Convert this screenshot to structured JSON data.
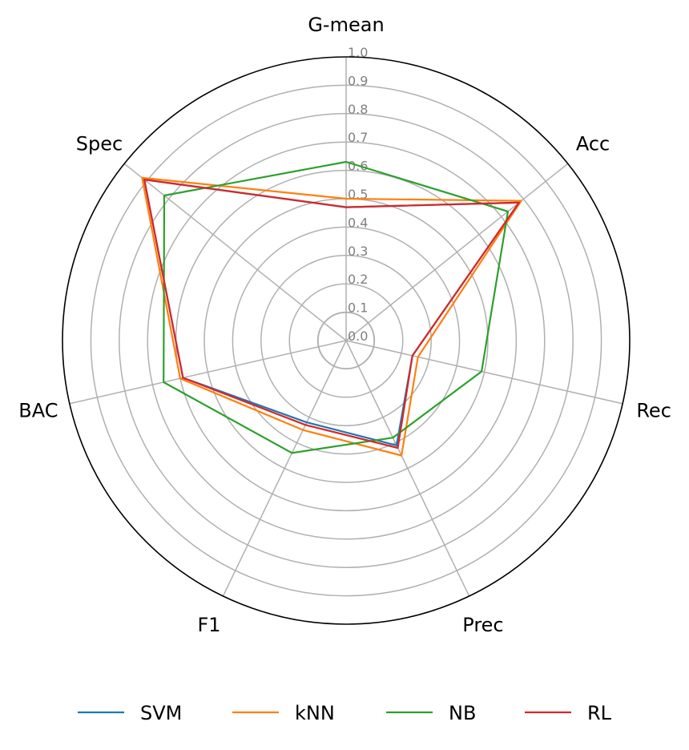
{
  "chart_data": {
    "type": "radar",
    "axes": [
      "G-mean",
      "Acc",
      "Rec",
      "Prec",
      "F1",
      "BAC",
      "Spec"
    ],
    "rlim": [
      0,
      1.0
    ],
    "ticks": [
      "0.0",
      "0.1",
      "0.2",
      "0.3",
      "0.4",
      "0.5",
      "0.6",
      "0.7",
      "0.8",
      "0.9",
      "1.0"
    ],
    "tick_values": [
      0.0,
      0.1,
      0.2,
      0.3,
      0.4,
      0.5,
      0.6,
      0.7,
      0.8,
      0.9,
      1.0
    ],
    "grid": true,
    "legend_position": "bottom",
    "series": [
      {
        "name": "SVM",
        "color": "#1f77b4",
        "values": [
          0.47,
          0.78,
          0.24,
          0.41,
          0.32,
          0.59,
          0.91
        ]
      },
      {
        "name": "kNN",
        "color": "#ff7f0e",
        "values": [
          0.5,
          0.79,
          0.26,
          0.45,
          0.35,
          0.6,
          0.92
        ]
      },
      {
        "name": "NB",
        "color": "#2ca02c",
        "values": [
          0.63,
          0.73,
          0.49,
          0.38,
          0.44,
          0.66,
          0.82
        ]
      },
      {
        "name": "RL",
        "color": "#d62728",
        "values": [
          0.47,
          0.78,
          0.24,
          0.42,
          0.33,
          0.59,
          0.91
        ]
      }
    ]
  }
}
